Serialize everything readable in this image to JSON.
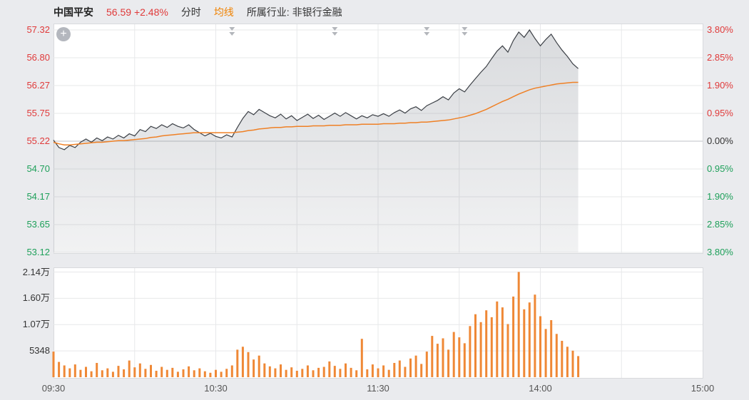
{
  "header": {
    "stock_name": "中国平安",
    "price": "56.59",
    "change": "+2.48%",
    "tab_time": "分时",
    "tab_avg": "均线",
    "industry_label": "所属行业:",
    "industry": "非银行金融"
  },
  "icons": {
    "zoom_plus": "+"
  },
  "colors": {
    "up": "#e03a3a",
    "down": "#1ea05a",
    "price_line": "#3c4046",
    "area_fill_top": "rgba(120,126,136,0.28)",
    "area_fill_bottom": "rgba(120,126,136,0.10)",
    "avg_line": "#ef8025",
    "volume_bar": "#ef8836",
    "grid": "#e7e8ea",
    "grid_mid": "#bfc2c7",
    "marker": "#b3b6bb"
  },
  "axes": {
    "price_axis": [
      {
        "t": "57.32",
        "c": "up"
      },
      {
        "t": "56.80",
        "c": "up"
      },
      {
        "t": "56.27",
        "c": "up"
      },
      {
        "t": "55.75",
        "c": "up"
      },
      {
        "t": "55.22",
        "c": "up"
      },
      {
        "t": "54.70",
        "c": "down"
      },
      {
        "t": "54.17",
        "c": "down"
      },
      {
        "t": "53.65",
        "c": "down"
      },
      {
        "t": "53.12",
        "c": "down"
      }
    ],
    "pct_axis": [
      {
        "t": "3.80%",
        "c": "up"
      },
      {
        "t": "2.85%",
        "c": "up"
      },
      {
        "t": "1.90%",
        "c": "up"
      },
      {
        "t": "0.95%",
        "c": "up"
      },
      {
        "t": "0.00%",
        "c": "flat"
      },
      {
        "t": "0.95%",
        "c": "down"
      },
      {
        "t": "1.90%",
        "c": "down"
      },
      {
        "t": "2.85%",
        "c": "down"
      },
      {
        "t": "3.80%",
        "c": "down"
      }
    ],
    "volume_axis": [
      "2.14万",
      "1.60万",
      "1.07万",
      "5348"
    ],
    "time_axis": [
      "09:30",
      "10:30",
      "11:30",
      "14:00",
      "15:00"
    ]
  },
  "chart_data": {
    "type": "line",
    "title": "中国平安 分时走势",
    "prev_close": 55.22,
    "last_price": 56.59,
    "change_pct": "+2.48%",
    "price_range": [
      53.12,
      57.32
    ],
    "pct_range": [
      -3.8,
      3.8
    ],
    "volume_range": [
      0,
      21392
    ],
    "volume_ticks": [
      5348,
      10696,
      16044,
      21392
    ],
    "x_total_minutes": 240,
    "time_tick_minutes": [
      0,
      60,
      120,
      180,
      240
    ],
    "grid_minutes": [
      30,
      60,
      90,
      120,
      150,
      180,
      210
    ],
    "sample_interval_min": 2,
    "event_marker_minutes": [
      66,
      104,
      138,
      152
    ],
    "legend": [
      "分时",
      "均线"
    ],
    "series": [
      {
        "name": "price",
        "values": [
          55.24,
          55.1,
          55.06,
          55.14,
          55.1,
          55.2,
          55.26,
          55.2,
          55.28,
          55.23,
          55.3,
          55.26,
          55.33,
          55.28,
          55.36,
          55.32,
          55.44,
          55.4,
          55.5,
          55.46,
          55.53,
          55.48,
          55.55,
          55.5,
          55.47,
          55.53,
          55.44,
          55.38,
          55.32,
          55.37,
          55.31,
          55.28,
          55.34,
          55.3,
          55.48,
          55.65,
          55.78,
          55.72,
          55.82,
          55.76,
          55.7,
          55.66,
          55.73,
          55.64,
          55.7,
          55.61,
          55.67,
          55.73,
          55.65,
          55.71,
          55.63,
          55.69,
          55.75,
          55.69,
          55.76,
          55.7,
          55.64,
          55.7,
          55.66,
          55.72,
          55.69,
          55.74,
          55.69,
          55.76,
          55.81,
          55.75,
          55.83,
          55.87,
          55.8,
          55.89,
          55.94,
          55.99,
          56.06,
          56.0,
          56.13,
          56.21,
          56.15,
          56.28,
          56.4,
          56.52,
          56.63,
          56.78,
          56.92,
          57.02,
          56.9,
          57.12,
          57.28,
          57.18,
          57.32,
          57.16,
          57.02,
          57.14,
          57.24,
          57.08,
          56.94,
          56.82,
          56.68,
          56.59
        ]
      },
      {
        "name": "avg",
        "values": [
          55.2,
          55.17,
          55.15,
          55.15,
          55.16,
          55.17,
          55.18,
          55.19,
          55.2,
          55.2,
          55.21,
          55.22,
          55.23,
          55.23,
          55.24,
          55.25,
          55.26,
          55.27,
          55.29,
          55.3,
          55.32,
          55.33,
          55.34,
          55.35,
          55.36,
          55.37,
          55.38,
          55.38,
          55.38,
          55.38,
          55.38,
          55.38,
          55.38,
          55.38,
          55.39,
          55.4,
          55.42,
          55.43,
          55.45,
          55.46,
          55.47,
          55.48,
          55.48,
          55.49,
          55.49,
          55.5,
          55.5,
          55.5,
          55.51,
          55.51,
          55.51,
          55.52,
          55.52,
          55.52,
          55.53,
          55.53,
          55.53,
          55.54,
          55.54,
          55.54,
          55.54,
          55.55,
          55.55,
          55.55,
          55.56,
          55.56,
          55.57,
          55.57,
          55.58,
          55.58,
          55.59,
          55.6,
          55.61,
          55.62,
          55.64,
          55.66,
          55.68,
          55.71,
          55.74,
          55.78,
          55.82,
          55.87,
          55.92,
          55.97,
          56.01,
          56.06,
          56.11,
          56.15,
          56.19,
          56.22,
          56.24,
          56.26,
          56.28,
          56.3,
          56.31,
          56.32,
          56.33,
          56.33
        ]
      },
      {
        "name": "volume",
        "values": [
          5200,
          3100,
          2400,
          1800,
          2600,
          1500,
          2100,
          1200,
          2900,
          1400,
          1800,
          1100,
          2300,
          1600,
          3400,
          2000,
          2800,
          1700,
          2500,
          1300,
          2100,
          1500,
          1900,
          1100,
          1600,
          2200,
          1400,
          1800,
          1200,
          900,
          1500,
          1100,
          1700,
          2400,
          5600,
          6200,
          5100,
          3600,
          4400,
          2800,
          2200,
          1800,
          2600,
          1500,
          2000,
          1300,
          1700,
          2400,
          1400,
          1900,
          2100,
          3200,
          2300,
          1700,
          2800,
          1900,
          1400,
          7800,
          1600,
          2600,
          1800,
          2400,
          1500,
          2900,
          3400,
          2100,
          3800,
          4400,
          2700,
          5200,
          8400,
          6800,
          7900,
          5600,
          9200,
          8100,
          6900,
          10400,
          12800,
          11200,
          13600,
          12200,
          15400,
          14200,
          10800,
          16400,
          21400,
          13800,
          15200,
          16800,
          12400,
          9800,
          11600,
          8800,
          7400,
          6200,
          5400,
          4300
        ]
      }
    ]
  }
}
